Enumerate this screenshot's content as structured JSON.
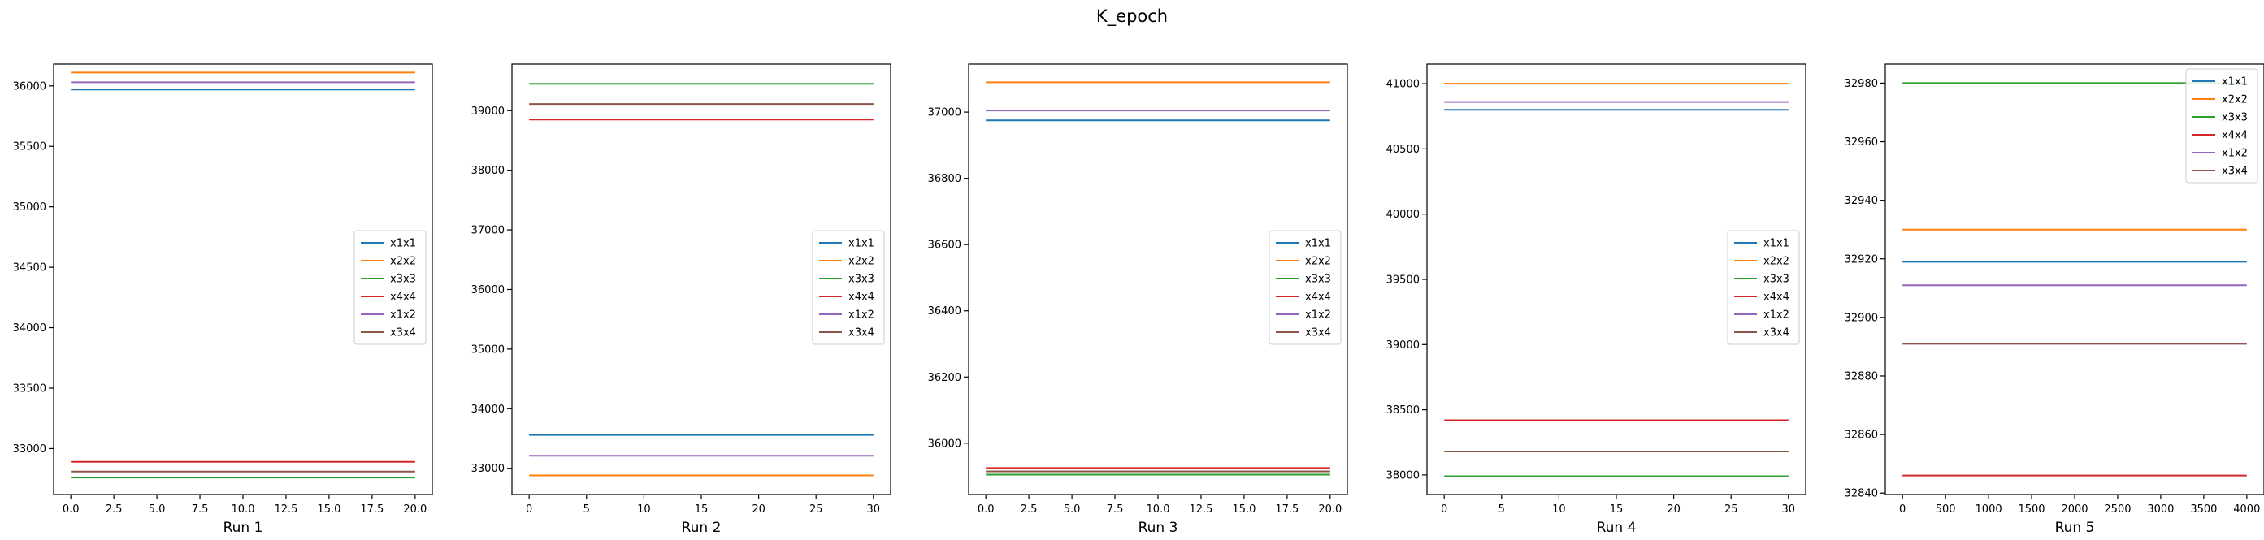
{
  "suptitle": "K_epoch",
  "colors": {
    "x1x1": "#1f77b4",
    "x2x2": "#ff7f0e",
    "x3x3": "#2ca02c",
    "x4x4": "#d62728",
    "x1x2": "#9467bd",
    "x3x4": "#8c564b"
  },
  "chart_data": [
    {
      "type": "line",
      "title": "",
      "xlabel": "Run 1",
      "ylabel": "",
      "xlim": [
        -1,
        21
      ],
      "ylim": [
        32620,
        36180
      ],
      "xticks": [
        0,
        2.5,
        5,
        7.5,
        10,
        12.5,
        15,
        17.5,
        20
      ],
      "xtick_labels": [
        "0.0",
        "2.5",
        "5.0",
        "7.5",
        "10.0",
        "12.5",
        "15.0",
        "17.5",
        "20.0"
      ],
      "yticks": [
        33000,
        33500,
        34000,
        34500,
        35000,
        35500,
        36000
      ],
      "ytick_labels": [
        "33000",
        "33500",
        "34000",
        "34500",
        "35000",
        "35500",
        "36000"
      ],
      "x_range": [
        0,
        20
      ],
      "legend_position": "center-right",
      "series": [
        {
          "name": "x1x1",
          "value": 35970
        },
        {
          "name": "x2x2",
          "value": 36110
        },
        {
          "name": "x3x3",
          "value": 32760
        },
        {
          "name": "x4x4",
          "value": 32890
        },
        {
          "name": "x1x2",
          "value": 36030
        },
        {
          "name": "x3x4",
          "value": 32810
        }
      ]
    },
    {
      "type": "line",
      "title": "",
      "xlabel": "Run 2",
      "ylabel": "",
      "xlim": [
        -1.5,
        31.5
      ],
      "ylim": [
        32560,
        39780
      ],
      "xticks": [
        0,
        5,
        10,
        15,
        20,
        25,
        30
      ],
      "xtick_labels": [
        "0",
        "5",
        "10",
        "15",
        "20",
        "25",
        "30"
      ],
      "yticks": [
        33000,
        34000,
        35000,
        36000,
        37000,
        38000,
        39000
      ],
      "ytick_labels": [
        "33000",
        "34000",
        "35000",
        "36000",
        "37000",
        "38000",
        "39000"
      ],
      "x_range": [
        0,
        30
      ],
      "legend_position": "center-right",
      "series": [
        {
          "name": "x1x1",
          "value": 33560
        },
        {
          "name": "x2x2",
          "value": 32880
        },
        {
          "name": "x3x3",
          "value": 39450
        },
        {
          "name": "x4x4",
          "value": 38850
        },
        {
          "name": "x1x2",
          "value": 33210
        },
        {
          "name": "x3x4",
          "value": 39110
        }
      ]
    },
    {
      "type": "line",
      "title": "",
      "xlabel": "Run 3",
      "ylabel": "",
      "xlim": [
        -1,
        21
      ],
      "ylim": [
        35845,
        37145
      ],
      "xticks": [
        0,
        2.5,
        5,
        7.5,
        10,
        12.5,
        15,
        17.5,
        20
      ],
      "xtick_labels": [
        "0.0",
        "2.5",
        "5.0",
        "7.5",
        "10.0",
        "12.5",
        "15.0",
        "17.5",
        "20.0"
      ],
      "yticks": [
        36000,
        36200,
        36400,
        36600,
        36800,
        37000
      ],
      "ytick_labels": [
        "36000",
        "36200",
        "36400",
        "36600",
        "36800",
        "37000"
      ],
      "x_range": [
        0,
        20
      ],
      "legend_position": "center-right",
      "series": [
        {
          "name": "x1x1",
          "value": 36975
        },
        {
          "name": "x2x2",
          "value": 37090
        },
        {
          "name": "x3x3",
          "value": 35905
        },
        {
          "name": "x4x4",
          "value": 35925
        },
        {
          "name": "x1x2",
          "value": 37005
        },
        {
          "name": "x3x4",
          "value": 35915
        }
      ]
    },
    {
      "type": "line",
      "title": "",
      "xlabel": "Run 4",
      "ylabel": "",
      "xlim": [
        -1.5,
        31.5
      ],
      "ylim": [
        37850,
        41150
      ],
      "xticks": [
        0,
        5,
        10,
        15,
        20,
        25,
        30
      ],
      "xtick_labels": [
        "0",
        "5",
        "10",
        "15",
        "20",
        "25",
        "30"
      ],
      "yticks": [
        38000,
        38500,
        39000,
        39500,
        40000,
        40500,
        41000
      ],
      "ytick_labels": [
        "38000",
        "38500",
        "39000",
        "39500",
        "40000",
        "40500",
        "41000"
      ],
      "x_range": [
        0,
        30
      ],
      "legend_position": "center-right",
      "series": [
        {
          "name": "x1x1",
          "value": 40800
        },
        {
          "name": "x2x2",
          "value": 41000
        },
        {
          "name": "x3x3",
          "value": 37990
        },
        {
          "name": "x4x4",
          "value": 38420
        },
        {
          "name": "x1x2",
          "value": 40860
        },
        {
          "name": "x3x4",
          "value": 38180
        }
      ]
    },
    {
      "type": "line",
      "title": "",
      "xlabel": "Run 5",
      "ylabel": "",
      "xlim": [
        -200,
        4200
      ],
      "ylim": [
        32839.5,
        32986.5
      ],
      "xticks": [
        0,
        500,
        1000,
        1500,
        2000,
        2500,
        3000,
        3500,
        4000
      ],
      "xtick_labels": [
        "0",
        "500",
        "1000",
        "1500",
        "2000",
        "2500",
        "3000",
        "3500",
        "4000"
      ],
      "yticks": [
        32840,
        32860,
        32880,
        32900,
        32920,
        32940,
        32960,
        32980
      ],
      "ytick_labels": [
        "32840",
        "32860",
        "32880",
        "32900",
        "32920",
        "32940",
        "32960",
        "32980"
      ],
      "x_range": [
        0,
        4000
      ],
      "legend_position": "upper-right",
      "series": [
        {
          "name": "x1x1",
          "value": 32919
        },
        {
          "name": "x2x2",
          "value": 32930
        },
        {
          "name": "x3x3",
          "value": 32980
        },
        {
          "name": "x4x4",
          "value": 32846
        },
        {
          "name": "x1x2",
          "value": 32911
        },
        {
          "name": "x3x4",
          "value": 32891
        }
      ]
    }
  ]
}
